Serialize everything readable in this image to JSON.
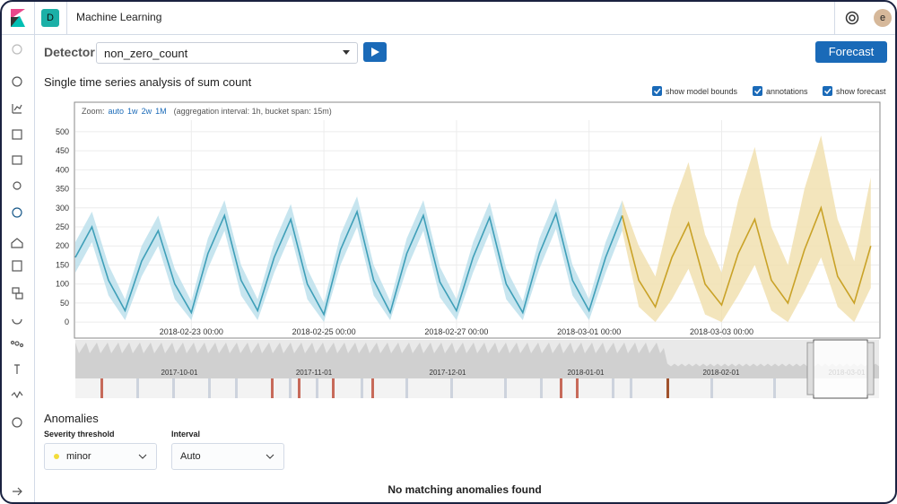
{
  "header": {
    "space_badge": "D",
    "app_title": "Machine Learning",
    "user_initial": "e"
  },
  "toolbar": {
    "detector_label": "Detector:",
    "detector_value": "non_zero_count",
    "forecast_button": "Forecast"
  },
  "chart_title": "Single time series analysis of sum count",
  "checkboxes": [
    "show model bounds",
    "annotations",
    "show forecast"
  ],
  "zoom": {
    "label": "Zoom:",
    "options": [
      "auto",
      "1w",
      "2w",
      "1M"
    ],
    "info": "(aggregation interval: 1h, bucket span: 15m)"
  },
  "chart_data": {
    "type": "line",
    "x": [
      "2018-02-21 06:00",
      "2018-02-21 12:00",
      "2018-02-21 18:00",
      "2018-02-22 00:00",
      "2018-02-22 06:00",
      "2018-02-22 12:00",
      "2018-02-22 18:00",
      "2018-02-23 00:00",
      "2018-02-23 06:00",
      "2018-02-23 12:00",
      "2018-02-23 18:00",
      "2018-02-24 00:00",
      "2018-02-24 06:00",
      "2018-02-24 12:00",
      "2018-02-24 18:00",
      "2018-02-25 00:00",
      "2018-02-25 06:00",
      "2018-02-25 12:00",
      "2018-02-25 18:00",
      "2018-02-26 00:00",
      "2018-02-26 06:00",
      "2018-02-26 12:00",
      "2018-02-26 18:00",
      "2018-02-27 00:00",
      "2018-02-27 06:00",
      "2018-02-27 12:00",
      "2018-02-27 18:00",
      "2018-02-28 00:00",
      "2018-02-28 06:00",
      "2018-02-28 12:00",
      "2018-02-28 18:00",
      "2018-03-01 00:00",
      "2018-03-01 06:00",
      "2018-03-01 12:00",
      "2018-03-01 18:00",
      "2018-03-02 00:00",
      "2018-03-02 06:00",
      "2018-03-02 12:00",
      "2018-03-02 18:00",
      "2018-03-03 00:00",
      "2018-03-03 06:00",
      "2018-03-03 12:00",
      "2018-03-03 18:00",
      "2018-03-04 00:00",
      "2018-03-04 06:00",
      "2018-03-04 12:00",
      "2018-03-04 18:00",
      "2018-03-05 00:00",
      "2018-03-05 06:00"
    ],
    "series": [
      {
        "color": "#3f9fb8",
        "band_color": "#bde0ec",
        "values": [
          170,
          250,
          110,
          30,
          160,
          240,
          100,
          25,
          180,
          280,
          110,
          30,
          170,
          270,
          100,
          20,
          190,
          290,
          110,
          25,
          180,
          280,
          105,
          30,
          170,
          275,
          100,
          25,
          180,
          285,
          110,
          30,
          170,
          280,
          null,
          null,
          null,
          null,
          null,
          null,
          null,
          null,
          null,
          null,
          null,
          null,
          null,
          null,
          null
        ],
        "upper": [
          210,
          290,
          150,
          60,
          200,
          280,
          140,
          55,
          220,
          320,
          150,
          60,
          210,
          310,
          140,
          50,
          230,
          330,
          150,
          55,
          220,
          320,
          145,
          60,
          210,
          315,
          140,
          55,
          220,
          325,
          150,
          60,
          210,
          320,
          null,
          null,
          null,
          null,
          null,
          null,
          null,
          null,
          null,
          null,
          null,
          null,
          null,
          null,
          null
        ],
        "lower": [
          130,
          210,
          70,
          5,
          120,
          200,
          60,
          5,
          140,
          240,
          70,
          5,
          130,
          230,
          60,
          0,
          150,
          250,
          70,
          5,
          140,
          240,
          65,
          5,
          130,
          235,
          60,
          5,
          140,
          245,
          70,
          5,
          130,
          240,
          null,
          null,
          null,
          null,
          null,
          null,
          null,
          null,
          null,
          null,
          null,
          null,
          null,
          null,
          null
        ]
      },
      {
        "color": "#c9a227",
        "band_color": "#f1e0b0",
        "values": [
          null,
          null,
          null,
          null,
          null,
          null,
          null,
          null,
          null,
          null,
          null,
          null,
          null,
          null,
          null,
          null,
          null,
          null,
          null,
          null,
          null,
          null,
          null,
          null,
          null,
          null,
          null,
          null,
          null,
          null,
          null,
          null,
          null,
          280,
          110,
          40,
          170,
          260,
          100,
          45,
          180,
          270,
          110,
          50,
          190,
          300,
          120,
          50,
          200
        ],
        "upper": [
          null,
          null,
          null,
          null,
          null,
          null,
          null,
          null,
          null,
          null,
          null,
          null,
          null,
          null,
          null,
          null,
          null,
          null,
          null,
          null,
          null,
          null,
          null,
          null,
          null,
          null,
          null,
          null,
          null,
          null,
          null,
          null,
          null,
          320,
          200,
          120,
          300,
          420,
          230,
          130,
          320,
          460,
          250,
          150,
          350,
          490,
          270,
          160,
          380
        ],
        "lower": [
          null,
          null,
          null,
          null,
          null,
          null,
          null,
          null,
          null,
          null,
          null,
          null,
          null,
          null,
          null,
          null,
          null,
          null,
          null,
          null,
          null,
          null,
          null,
          null,
          null,
          null,
          null,
          null,
          null,
          null,
          null,
          null,
          null,
          240,
          40,
          0,
          60,
          140,
          20,
          0,
          70,
          150,
          30,
          0,
          80,
          170,
          40,
          0,
          90
        ]
      }
    ],
    "xlim": [
      "2018-02-21 06:00",
      "2018-03-05 09:00"
    ],
    "xticks": [
      "2018-02-23 00:00",
      "2018-02-25 00:00",
      "2018-02-27 00:00",
      "2018-03-01 00:00",
      "2018-03-03 00:00"
    ],
    "ylim": [
      -42,
      535
    ],
    "yticks": [
      0,
      50,
      100,
      150,
      200,
      250,
      300,
      350,
      400,
      450,
      500
    ],
    "grid": true
  },
  "overview": {
    "labels": [
      "2017-10-01",
      "2017-11-01",
      "2017-12-01",
      "2018-01-01",
      "2018-02-01",
      "2018-03-01"
    ]
  },
  "anomalies": {
    "title": "Anomalies",
    "severity_label": "Severity threshold",
    "severity_value": "minor",
    "interval_label": "Interval",
    "interval_value": "Auto",
    "empty_message": "No matching anomalies found"
  }
}
